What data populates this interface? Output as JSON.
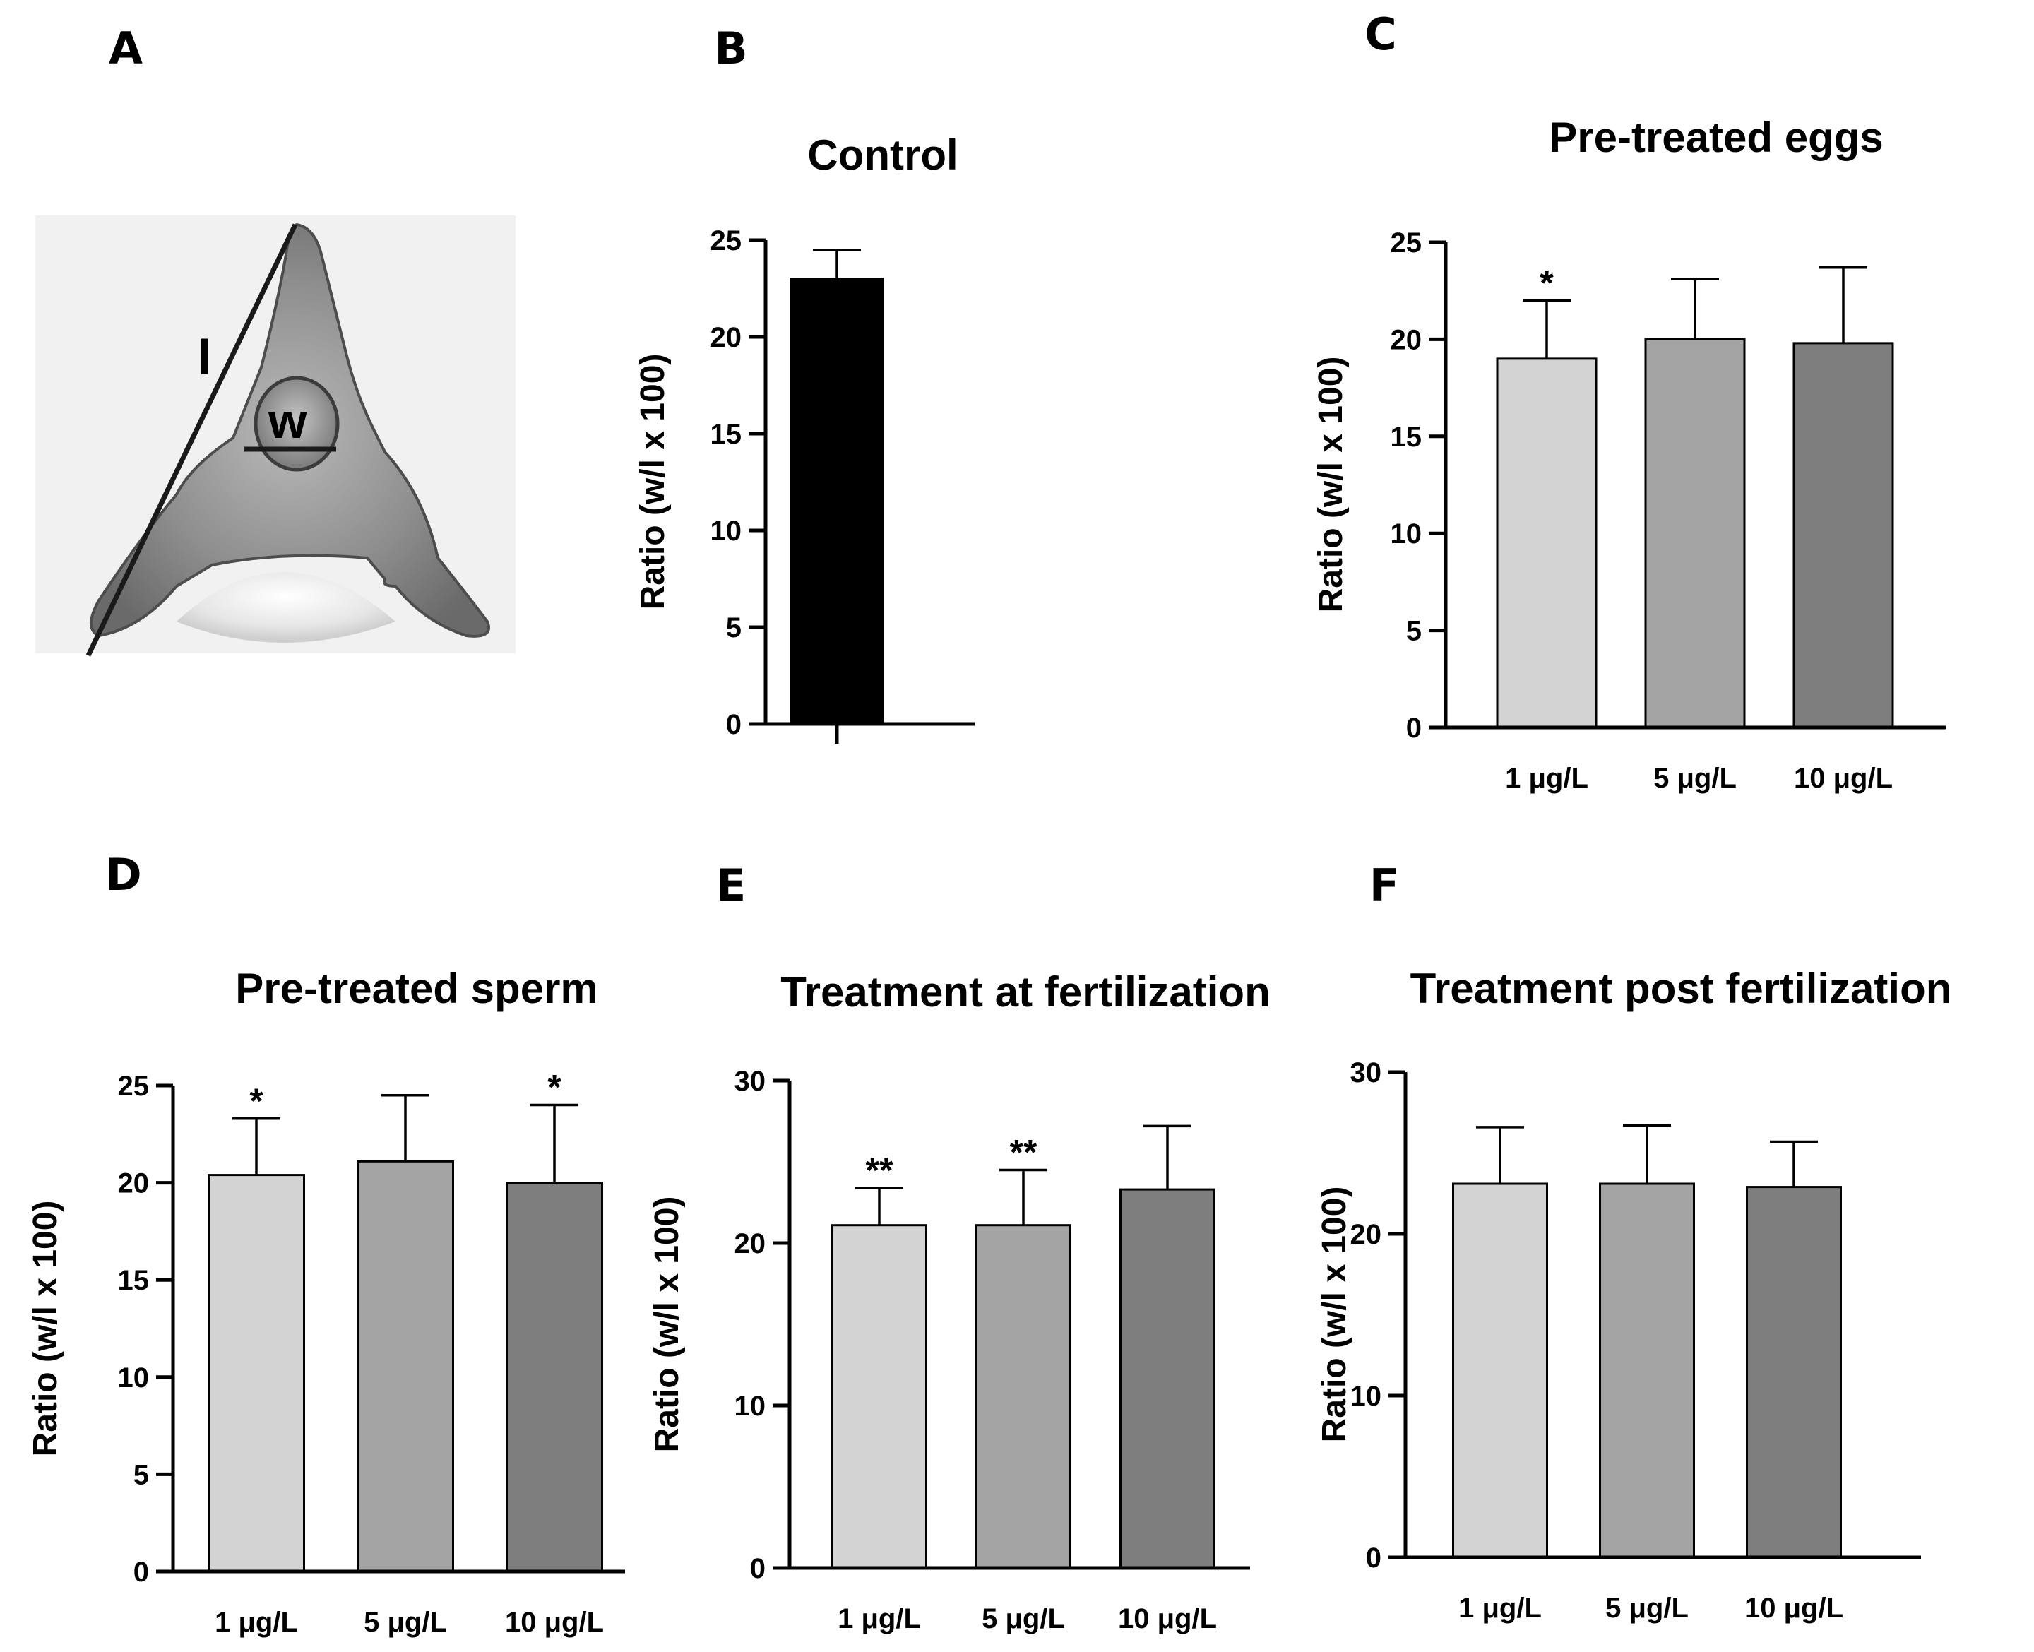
{
  "colors": {
    "control": "#000000",
    "low": "#d3d3d3",
    "mid": "#a4a4a4",
    "high": "#7e7e7e",
    "background": "#ffffff"
  },
  "panel_a": {
    "letter": "A",
    "label_l": "l",
    "label_w": "w"
  },
  "chart_data": [
    {
      "panel": "B",
      "type": "bar",
      "title": "Control",
      "ylabel": "Ratio (w/l x 100)",
      "xlabel": "",
      "categories": [
        ""
      ],
      "values": [
        23
      ],
      "errors": [
        1.5
      ],
      "significance": [
        ""
      ],
      "ylim": [
        0,
        25
      ],
      "yticks": [
        0,
        5,
        10,
        15,
        20,
        25
      ],
      "colors": [
        "#000000"
      ]
    },
    {
      "panel": "C",
      "type": "bar",
      "title": "Pre-treated eggs",
      "ylabel": "Ratio (w/l x 100)",
      "xlabel": "",
      "categories": [
        "1 μg/L",
        "5 μg/L",
        "10 μg/L"
      ],
      "values": [
        19,
        20,
        19.8
      ],
      "errors": [
        3,
        3.1,
        3.9
      ],
      "significance": [
        "*",
        "",
        ""
      ],
      "ylim": [
        0,
        25
      ],
      "yticks": [
        0,
        5,
        10,
        15,
        20,
        25
      ],
      "colors": [
        "#d3d3d3",
        "#a4a4a4",
        "#7e7e7e"
      ]
    },
    {
      "panel": "D",
      "type": "bar",
      "title": "Pre-treated sperm",
      "ylabel": "Ratio (w/l x 100)",
      "xlabel": "",
      "categories": [
        "1 μg/L",
        "5 μg/L",
        "10 μg/L"
      ],
      "values": [
        20.4,
        21.1,
        20
      ],
      "errors": [
        2.9,
        3.4,
        4
      ],
      "significance": [
        "*",
        "",
        "*"
      ],
      "ylim": [
        0,
        25
      ],
      "yticks": [
        0,
        5,
        10,
        15,
        20,
        25
      ],
      "colors": [
        "#d3d3d3",
        "#a4a4a4",
        "#7e7e7e"
      ]
    },
    {
      "panel": "E",
      "type": "bar",
      "title": "Treatment at fertilization",
      "ylabel": "Ratio (w/l x 100)",
      "xlabel": "",
      "categories": [
        "1 μg/L",
        "5 μg/L",
        "10 μg/L"
      ],
      "values": [
        21.1,
        21.1,
        23.3
      ],
      "errors": [
        2.3,
        3.4,
        3.9
      ],
      "significance": [
        "**",
        "**",
        ""
      ],
      "ylim": [
        0,
        30
      ],
      "yticks": [
        0,
        10,
        20,
        30
      ],
      "colors": [
        "#d3d3d3",
        "#a4a4a4",
        "#7e7e7e"
      ]
    },
    {
      "panel": "F",
      "type": "bar",
      "title": "Treatment post fertilization",
      "ylabel": "Ratio (w/l x 100)",
      "xlabel": "",
      "categories": [
        "1 μg/L",
        "5 μg/L",
        "10 μg/L"
      ],
      "values": [
        23.1,
        23.1,
        22.9
      ],
      "errors": [
        3.5,
        3.6,
        2.8
      ],
      "significance": [
        "",
        "",
        ""
      ],
      "ylim": [
        0,
        30
      ],
      "yticks": [
        0,
        10,
        20,
        30
      ],
      "colors": [
        "#d3d3d3",
        "#a4a4a4",
        "#7e7e7e"
      ]
    }
  ]
}
